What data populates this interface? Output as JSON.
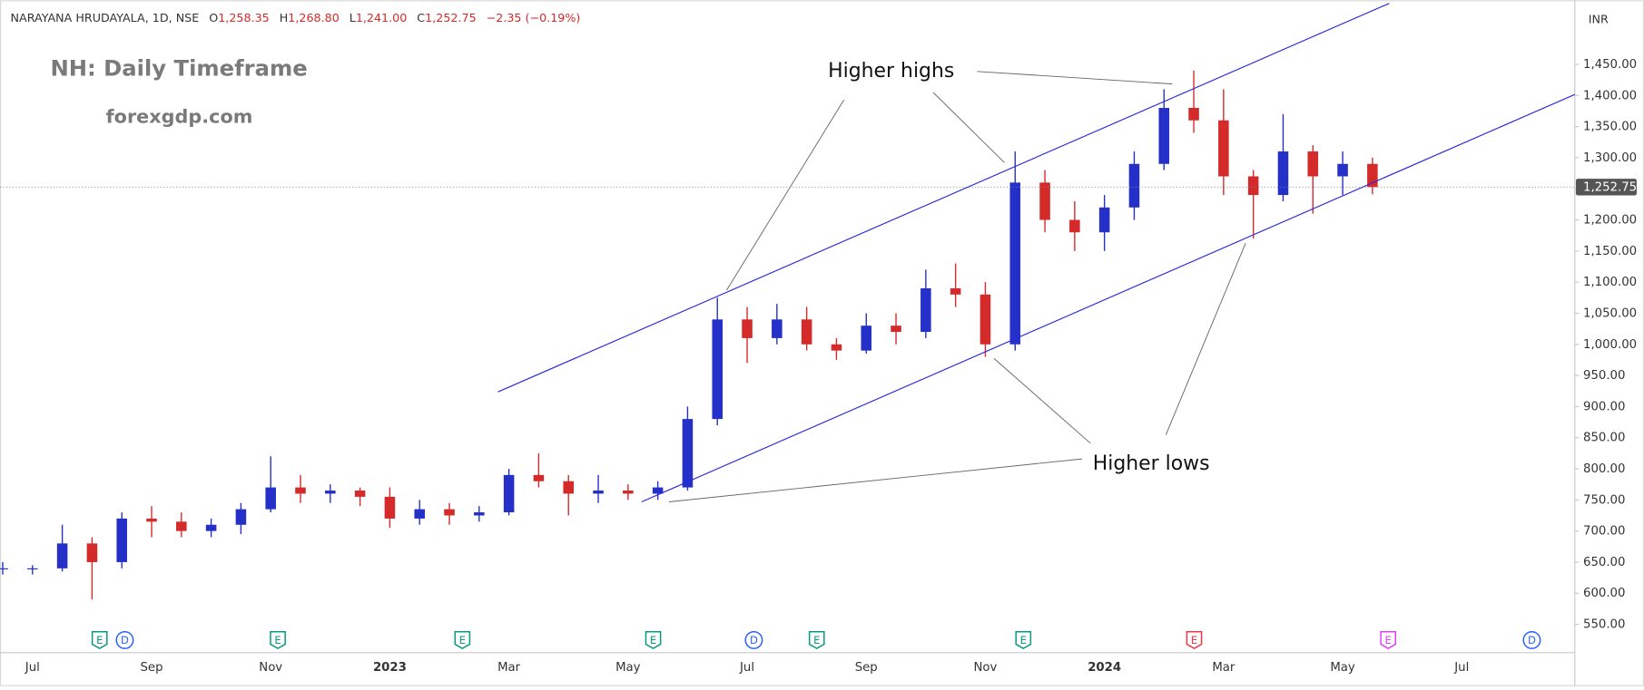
{
  "chart_data": {
    "type": "candlestick",
    "header": {
      "symbol": "NARAYANA HRUDAYALA, 1D, NSE",
      "o_label": "O",
      "o_value": "1,258.35",
      "h_label": "H",
      "h_value": "1,268.80",
      "l_label": "L",
      "l_value": "1,241.00",
      "c_label": "C",
      "c_value": "1,252.75",
      "change": "−2.35 (−0.19%)"
    },
    "title": "NH: Daily Timeframe",
    "subtitle": "forexgdp.com",
    "annotations": [
      "Higher highs",
      "Higher lows"
    ],
    "currency": "INR",
    "last_price_label": "1,252.75",
    "event_markers": [
      "E",
      "D",
      "E",
      "E",
      "E",
      "D",
      "E",
      "E",
      "E",
      "E",
      "D"
    ],
    "categories": [
      null,
      "Jul",
      null,
      null,
      null,
      "Sep",
      null,
      null,
      null,
      "Nov",
      null,
      null,
      null,
      "2023",
      null,
      null,
      null,
      "Mar",
      null,
      null,
      null,
      "May",
      null,
      null,
      null,
      "Jul",
      null,
      null,
      null,
      "Sep",
      null,
      null,
      null,
      "Nov",
      null,
      null,
      null,
      "2024",
      null,
      null,
      null,
      "Mar",
      null,
      null,
      null,
      "May",
      null,
      null,
      null,
      "Jul",
      null,
      null,
      null
    ],
    "open": [
      640,
      640,
      640,
      680,
      650,
      720,
      715,
      700,
      710,
      735,
      770,
      760,
      765,
      755,
      720,
      735,
      725,
      730,
      790,
      780,
      760,
      765,
      760,
      770,
      880,
      1040,
      1010,
      1040,
      1000,
      990,
      1030,
      1020,
      1090,
      1080,
      1000,
      1260,
      1200,
      1180,
      1220,
      1290,
      1380,
      1360,
      1270,
      1240,
      1310,
      1270,
      1290,
      null,
      null,
      null,
      null,
      null,
      null
    ],
    "high": [
      650,
      645,
      710,
      690,
      730,
      740,
      730,
      720,
      745,
      820,
      790,
      775,
      770,
      770,
      750,
      745,
      740,
      800,
      825,
      790,
      790,
      775,
      780,
      900,
      1075,
      1060,
      1065,
      1060,
      1010,
      1050,
      1050,
      1120,
      1130,
      1100,
      1310,
      1280,
      1230,
      1240,
      1310,
      1410,
      1440,
      1410,
      1280,
      1370,
      1320,
      1310,
      1300,
      null,
      null,
      null,
      null,
      null,
      null
    ],
    "low": [
      630,
      630,
      635,
      590,
      640,
      690,
      690,
      690,
      695,
      730,
      745,
      745,
      740,
      705,
      710,
      710,
      715,
      725,
      770,
      725,
      745,
      750,
      750,
      765,
      870,
      970,
      1000,
      990,
      975,
      985,
      1000,
      1010,
      1060,
      980,
      990,
      1180,
      1150,
      1150,
      1200,
      1280,
      1340,
      1240,
      1170,
      1230,
      1210,
      1240,
      1241,
      null,
      null,
      null,
      null,
      null,
      null
    ],
    "close": [
      640,
      640,
      680,
      650,
      720,
      715,
      700,
      710,
      735,
      770,
      760,
      765,
      755,
      720,
      735,
      725,
      730,
      790,
      780,
      760,
      765,
      760,
      770,
      880,
      1040,
      1010,
      1040,
      1000,
      990,
      1030,
      1020,
      1090,
      1080,
      1000,
      1260,
      1200,
      1180,
      1220,
      1290,
      1380,
      1360,
      1270,
      1240,
      1310,
      1270,
      1290,
      1252.75,
      null,
      null,
      null,
      null,
      null,
      null
    ],
    "up_color": "#2430c8",
    "down_color": "#d42a2a",
    "ylim": [
      504.5,
      1548
    ],
    "yticks": [
      {
        "value": 550,
        "label": "550.00"
      },
      {
        "value": 600,
        "label": "600.00"
      },
      {
        "value": 650,
        "label": "650.00"
      },
      {
        "value": 700,
        "label": "700.00"
      },
      {
        "value": 750,
        "label": "750.00"
      },
      {
        "value": 800,
        "label": "800.00"
      },
      {
        "value": 850,
        "label": "850.00"
      },
      {
        "value": 900,
        "label": "900.00"
      },
      {
        "value": 950,
        "label": "950.00"
      },
      {
        "value": 1000,
        "label": "1,000.00"
      },
      {
        "value": 1050,
        "label": "1,050.00"
      },
      {
        "value": 1100,
        "label": "1,100.00"
      },
      {
        "value": 1150,
        "label": "1,150.00"
      },
      {
        "value": 1200,
        "label": "1,200.00"
      },
      {
        "value": 1250,
        "label": "1,250.00"
      },
      {
        "value": 1300,
        "label": "1,300.00"
      },
      {
        "value": 1350,
        "label": "1,350.00"
      },
      {
        "value": 1400,
        "label": "1,400.00"
      },
      {
        "value": 1450,
        "label": "1,450.00"
      }
    ],
    "grid": false
  }
}
